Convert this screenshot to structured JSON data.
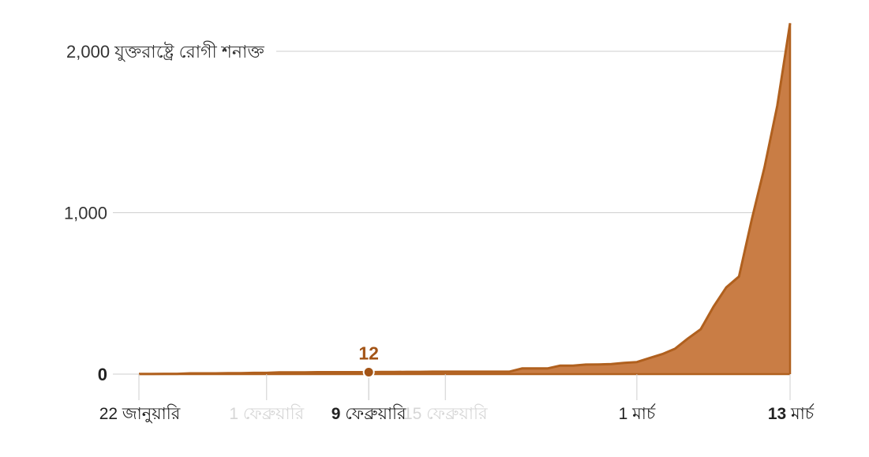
{
  "chart_data": {
    "type": "area",
    "title": "যুক্তরাষ্ট্রে রোগী শনাক্ত",
    "colors": {
      "fill": "#c97d45",
      "line": "#b0601e",
      "annotation": "#a35416"
    },
    "y_axis": {
      "ylim": [
        0,
        2200
      ],
      "ticks": [
        {
          "value": 0,
          "label": "0",
          "bold": true
        },
        {
          "value": 1000,
          "label": "1,000"
        },
        {
          "value": 2000,
          "label": "2,000",
          "suffix": "যুক্তরাষ্ট্রে রোগী শনাক্ত"
        }
      ]
    },
    "x_axis": {
      "xlim": [
        0,
        51
      ],
      "ticks": [
        {
          "day": 0,
          "label": "22 জানুয়ারি",
          "style": "normal"
        },
        {
          "day": 10,
          "label": "1 ফেব্রুয়ারি",
          "style": "faded"
        },
        {
          "day": 18,
          "num": "9",
          "label": "ফেব্রুয়ারি",
          "style": "bold-num"
        },
        {
          "day": 24,
          "label": "15 ফেব্রুয়ারি",
          "style": "faded"
        },
        {
          "day": 39,
          "label": "1 মার্চ",
          "style": "normal"
        },
        {
          "day": 51,
          "num": "13",
          "label": "মার্চ",
          "style": "bold-num"
        }
      ]
    },
    "series": [
      {
        "name": "যুক্তরাষ্ট্রে রোগী শনাক্ত",
        "x": [
          0,
          1,
          2,
          3,
          4,
          5,
          6,
          7,
          8,
          9,
          10,
          11,
          12,
          13,
          14,
          15,
          16,
          17,
          18,
          19,
          20,
          21,
          22,
          23,
          24,
          25,
          26,
          27,
          28,
          29,
          30,
          31,
          32,
          33,
          34,
          35,
          36,
          37,
          38,
          39,
          40,
          41,
          42,
          43,
          44,
          45,
          46,
          47,
          48,
          49,
          50,
          51
        ],
        "values": [
          1,
          1,
          2,
          2,
          5,
          5,
          5,
          6,
          6,
          8,
          8,
          11,
          11,
          11,
          12,
          12,
          12,
          12,
          12,
          13,
          13,
          14,
          14,
          15,
          15,
          15,
          15,
          15,
          15,
          15,
          35,
          35,
          35,
          53,
          53,
          59,
          60,
          62,
          70,
          75,
          100,
          124,
          158,
          221,
          278,
          417,
          537,
          605,
          959,
          1281,
          1663,
          2174
        ]
      }
    ],
    "annotation": {
      "day": 18,
      "value": 12,
      "label": "12"
    }
  }
}
